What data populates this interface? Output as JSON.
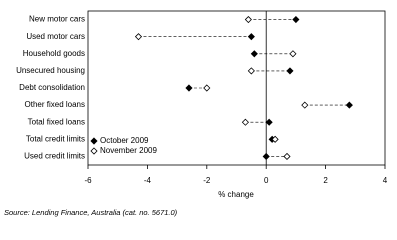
{
  "chart_data": {
    "type": "dot",
    "categories": [
      "New motor cars",
      "Used motor cars",
      "Household goods",
      "Unsecured housing",
      "Debt consolidation",
      "Other fixed loans",
      "Total fixed loans",
      "Total credit limits",
      "Used credit limits"
    ],
    "series": [
      {
        "name": "October 2009",
        "color": "#000000",
        "marker": "filled-diamond",
        "values": [
          1.0,
          -0.5,
          -0.4,
          0.8,
          -2.6,
          2.8,
          0.1,
          0.2,
          0.0
        ]
      },
      {
        "name": "November 2009",
        "color": "#000000",
        "marker": "open-diamond",
        "values": [
          -0.6,
          -4.3,
          0.9,
          -0.5,
          -2.0,
          1.3,
          -0.7,
          0.3,
          0.7
        ]
      }
    ],
    "xlabel": "% change",
    "xlim": [
      -6,
      4
    ],
    "xticks": [
      -6,
      -4,
      -2,
      0,
      2,
      4
    ],
    "legend": "lower left",
    "source": "Source: Lending Finance, Australia (cat. no. 5671.0)"
  }
}
